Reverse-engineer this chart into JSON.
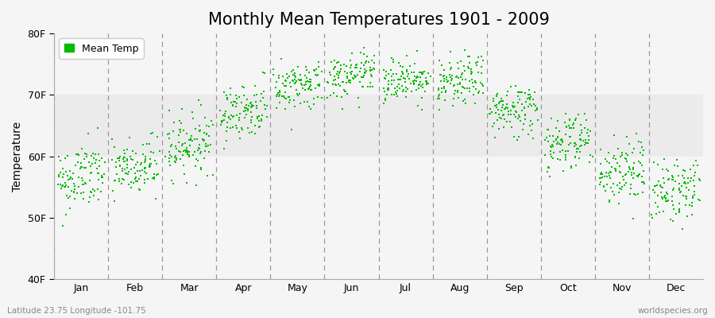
{
  "title": "Monthly Mean Temperatures 1901 - 2009",
  "ylabel": "Temperature",
  "xlabel": "",
  "ylim": [
    40,
    80
  ],
  "yticks": [
    40,
    50,
    60,
    70,
    80
  ],
  "ytick_labels": [
    "40F",
    "50F",
    "60F",
    "70F",
    "80F"
  ],
  "months": [
    "Jan",
    "Feb",
    "Mar",
    "Apr",
    "May",
    "Jun",
    "Jul",
    "Aug",
    "Sep",
    "Oct",
    "Nov",
    "Dec"
  ],
  "month_means": [
    56.5,
    58.0,
    62.0,
    67.5,
    71.5,
    73.0,
    72.5,
    72.0,
    67.5,
    62.5,
    57.5,
    54.5
  ],
  "month_stds": [
    2.8,
    2.5,
    2.5,
    2.2,
    2.0,
    1.8,
    1.8,
    2.0,
    2.2,
    2.5,
    2.8,
    2.5
  ],
  "n_years": 109,
  "scatter_color": "#00BB00",
  "scatter_marker": "s",
  "scatter_size": 4,
  "legend_label": "Mean Temp",
  "bg_color": "#F5F5F5",
  "band_color": "#EAEAEA",
  "dashed_line_color": "#999999",
  "bottom_left_text": "Latitude 23.75 Longitude -101.75",
  "bottom_right_text": "worldspecies.org",
  "title_fontsize": 15,
  "axis_label_fontsize": 10,
  "tick_label_fontsize": 9,
  "legend_fontsize": 9
}
